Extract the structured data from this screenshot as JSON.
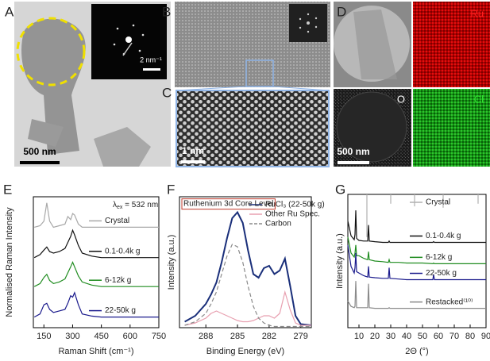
{
  "panels": {
    "labels": [
      "A",
      "B",
      "C",
      "D",
      "E",
      "F",
      "G"
    ],
    "A": {
      "inset_scale": "2 nm⁻¹",
      "scale": "500 nm"
    },
    "C": {
      "scale": "1 nm"
    },
    "D": {
      "maps": [
        "Ru",
        "O",
        "Cl"
      ],
      "scale": "500 nm"
    }
  },
  "chart_data": [
    {
      "type": "line",
      "x_label": "Raman Shift (cm⁻¹)",
      "y_label": "Normalised Raman Intensity",
      "annotation": {
        "symbol": "λ",
        "subscript": "ex",
        "text": " = 532 nm"
      },
      "x": [
        100,
        130,
        150,
        165,
        180,
        200,
        230,
        260,
        275,
        290,
        300,
        310,
        330,
        350,
        400,
        450,
        500,
        600,
        700,
        750
      ],
      "xlim": [
        95,
        750
      ],
      "xticks": [
        150,
        300,
        450,
        600,
        750
      ],
      "ylim": [
        0,
        4.3
      ],
      "legend": "inline",
      "series": [
        {
          "name": "Crystal",
          "color": "#a8a8a8",
          "values": [
            3.3,
            3.35,
            3.5,
            4.1,
            3.5,
            3.3,
            3.35,
            3.4,
            3.65,
            3.55,
            3.75,
            3.7,
            3.4,
            3.3,
            3.3,
            3.3,
            3.3,
            3.3,
            3.3,
            3.3
          ]
        },
        {
          "name": "0.1-0.4k g",
          "color": "#111111",
          "values": [
            2.3,
            2.4,
            2.55,
            2.65,
            2.5,
            2.45,
            2.5,
            2.6,
            2.8,
            3.0,
            3.2,
            3.05,
            2.7,
            2.45,
            2.35,
            2.3,
            2.3,
            2.3,
            2.3,
            2.3
          ]
        },
        {
          "name": "6-12k g",
          "color": "#1f8c1f",
          "values": [
            1.35,
            1.45,
            1.65,
            1.75,
            1.55,
            1.45,
            1.5,
            1.6,
            1.8,
            2.0,
            2.15,
            2.0,
            1.7,
            1.5,
            1.4,
            1.35,
            1.35,
            1.35,
            1.35,
            1.35
          ]
        },
        {
          "name": "22-50k g",
          "color": "#1a1a8c",
          "values": [
            0.35,
            0.45,
            0.75,
            0.8,
            0.6,
            0.5,
            0.55,
            0.6,
            0.8,
            1.05,
            1.0,
            1.15,
            0.75,
            0.45,
            0.38,
            0.35,
            0.35,
            0.35,
            0.35,
            0.35
          ]
        }
      ]
    },
    {
      "type": "line",
      "title": "Ruthenium 3d Core Level",
      "x_label": "Binding Energy (eV)",
      "y_label": "Intensity (a.u.)",
      "x": [
        290,
        289,
        288,
        287.5,
        287,
        286.5,
        286,
        285.5,
        285,
        284.5,
        284,
        283.5,
        283,
        282.5,
        282,
        281.5,
        281,
        280.5,
        280,
        279.5,
        279,
        278
      ],
      "xlim": [
        290.5,
        278
      ],
      "xticks": [
        288,
        285,
        282,
        279
      ],
      "ylim": [
        0,
        1.1
      ],
      "legend": "upper right",
      "series": [
        {
          "name": "RuCl₃ (22-50k g)",
          "color": "#1a2f7a",
          "linestyle": "solid",
          "values": [
            0.05,
            0.1,
            0.2,
            0.28,
            0.38,
            0.55,
            0.75,
            0.92,
            0.97,
            0.88,
            0.65,
            0.45,
            0.42,
            0.5,
            0.52,
            0.45,
            0.48,
            0.58,
            0.35,
            0.1,
            0.03,
            0.02
          ]
        },
        {
          "name": "Other Ru Spec.",
          "color": "#e8a0b0",
          "linestyle": "solid",
          "values": [
            0.02,
            0.04,
            0.08,
            0.12,
            0.14,
            0.12,
            0.1,
            0.08,
            0.06,
            0.05,
            0.05,
            0.06,
            0.08,
            0.1,
            0.1,
            0.08,
            0.12,
            0.3,
            0.15,
            0.04,
            0.02,
            0.02
          ]
        },
        {
          "name": "Carbon",
          "color": "#8a8a8a",
          "linestyle": "dashed",
          "values": [
            0.02,
            0.05,
            0.12,
            0.2,
            0.3,
            0.45,
            0.6,
            0.7,
            0.68,
            0.55,
            0.35,
            0.18,
            0.08,
            0.04,
            0.02,
            0.01,
            0.01,
            0.01,
            0.01,
            0.01,
            0.01,
            0.01
          ]
        }
      ]
    },
    {
      "type": "line",
      "x_label": "2Θ (°)",
      "y_label": "Intensity (a.u.)",
      "xlim": [
        3,
        90
      ],
      "xticks": [
        10,
        20,
        30,
        40,
        50,
        60,
        70,
        80,
        90
      ],
      "ylim": [
        0,
        10
      ],
      "legend": "inline",
      "series": [
        {
          "name": "Crystal",
          "color": "#b0b0b0",
          "style": "stick",
          "x": [
            15,
            30,
            45,
            63,
            85
          ],
          "values": [
            6.8,
            9.3,
            9.1,
            9.0,
            9.3
          ]
        },
        {
          "name": "0.1-0.4k g",
          "color": "#111111",
          "style": "line",
          "x": [
            3,
            5,
            7,
            7.5,
            8,
            8.5,
            10,
            13,
            15.5,
            16,
            16.5,
            20,
            25,
            28.5,
            29,
            29.5,
            35,
            40,
            45,
            50,
            56.5,
            57,
            57.5,
            70,
            80,
            90
          ],
          "values": [
            8.0,
            6.9,
            6.6,
            7.0,
            8.8,
            6.7,
            6.55,
            6.5,
            6.5,
            7.7,
            6.5,
            6.45,
            6.4,
            6.4,
            6.5,
            6.4,
            6.4,
            6.4,
            6.4,
            6.4,
            6.4,
            6.45,
            6.4,
            6.4,
            6.4,
            6.4
          ]
        },
        {
          "name": "6-12k g",
          "color": "#1f8c1f",
          "style": "line",
          "x": [
            3,
            5,
            7,
            7.5,
            8,
            8.5,
            10,
            13,
            15.5,
            16,
            16.5,
            20,
            25,
            28.5,
            29,
            29.5,
            35,
            40,
            45,
            50,
            56.5,
            57,
            57.5,
            70,
            80,
            90
          ],
          "values": [
            6.8,
            5.6,
            5.3,
            5.6,
            6.2,
            5.4,
            5.4,
            5.2,
            5.1,
            5.7,
            5.1,
            5.0,
            4.95,
            4.9,
            5.1,
            4.9,
            4.9,
            4.85,
            4.85,
            4.85,
            4.8,
            4.85,
            4.8,
            4.8,
            4.8,
            4.8
          ]
        },
        {
          "name": "22-50k g",
          "color": "#1a1a8c",
          "style": "line",
          "x": [
            3,
            5,
            7,
            7.5,
            8,
            8.5,
            10,
            13,
            15.5,
            16,
            16.5,
            20,
            25,
            28.5,
            29,
            29.5,
            35,
            40,
            45,
            50,
            56.5,
            57,
            57.5,
            70,
            80,
            90
          ],
          "values": [
            6.2,
            4.6,
            4.1,
            4.5,
            5.6,
            4.2,
            4.1,
            3.9,
            3.8,
            4.6,
            3.8,
            3.75,
            3.7,
            3.7,
            4.5,
            3.7,
            3.65,
            3.6,
            3.6,
            3.6,
            3.6,
            4.0,
            3.6,
            3.6,
            3.6,
            3.6
          ]
        },
        {
          "name": "Restacked⁽¹⁰⁾",
          "color": "#8a8a8a",
          "style": "line",
          "x": [
            3,
            5,
            7,
            7.5,
            8,
            8.5,
            10,
            13,
            15.5,
            16,
            16.5,
            20,
            25,
            28.5,
            29,
            29.5,
            35,
            40,
            45,
            50,
            56.5,
            57,
            57.5,
            70,
            80,
            90
          ],
          "values": [
            2.0,
            1.6,
            1.5,
            1.6,
            3.5,
            1.5,
            1.5,
            1.5,
            1.5,
            3.3,
            1.5,
            1.45,
            1.45,
            1.45,
            1.5,
            1.45,
            1.45,
            1.45,
            1.45,
            1.45,
            1.45,
            1.45,
            1.45,
            1.45,
            1.45,
            1.45
          ]
        }
      ]
    }
  ]
}
